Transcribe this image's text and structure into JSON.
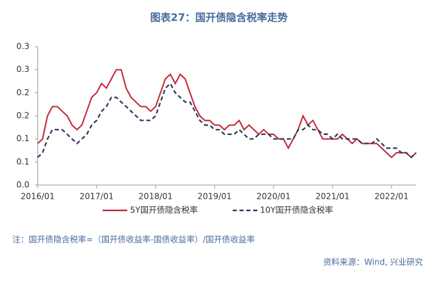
{
  "chart_data": {
    "type": "line",
    "title": "图表27：国开债隐含税率走势",
    "note": "注：国开债隐含税率=（国开债收益率-国债收益率）/国开债收益率",
    "source": "资料来源：Wind, 兴业研究",
    "x": [
      "2016/01",
      "2016/02",
      "2016/03",
      "2016/04",
      "2016/05",
      "2016/06",
      "2016/07",
      "2016/08",
      "2016/09",
      "2016/10",
      "2016/11",
      "2016/12",
      "2017/01",
      "2017/02",
      "2017/03",
      "2017/04",
      "2017/05",
      "2017/06",
      "2017/07",
      "2017/08",
      "2017/09",
      "2017/10",
      "2017/11",
      "2017/12",
      "2018/01",
      "2018/02",
      "2018/03",
      "2018/04",
      "2018/05",
      "2018/06",
      "2018/07",
      "2018/08",
      "2018/09",
      "2018/10",
      "2018/11",
      "2018/12",
      "2019/01",
      "2019/02",
      "2019/03",
      "2019/04",
      "2019/05",
      "2019/06",
      "2019/07",
      "2019/08",
      "2019/09",
      "2019/10",
      "2019/11",
      "2019/12",
      "2020/01",
      "2020/02",
      "2020/03",
      "2020/04",
      "2020/05",
      "2020/06",
      "2020/07",
      "2020/08",
      "2020/09",
      "2020/10",
      "2020/11",
      "2020/12",
      "2021/01",
      "2021/02",
      "2021/03",
      "2021/04",
      "2021/05",
      "2021/06",
      "2021/07",
      "2021/08",
      "2021/09",
      "2021/10",
      "2021/11",
      "2021/12",
      "2022/01",
      "2022/02",
      "2022/03",
      "2022/04",
      "2022/05",
      "2022/06"
    ],
    "xlim": [
      "2016/01",
      "2022/06"
    ],
    "xticks": [
      "2016/01",
      "2017/01",
      "2018/01",
      "2019/01",
      "2020/01",
      "2021/01",
      "2022/01"
    ],
    "ylim": [
      0,
      0.3
    ],
    "yticks": [
      {
        "value": 0,
        "label": "0.0"
      },
      {
        "value": 0.05,
        "label": "0.1"
      },
      0.1,
      {
        "value": 0.15,
        "label": "0.2"
      },
      0.2,
      {
        "value": 0.25,
        "label": "0.3"
      },
      0.3
    ],
    "grid": false,
    "legend": "bottom",
    "series": [
      {
        "name": "5Y国开债隐含税率",
        "color": "#c0293b",
        "dash": false,
        "values": [
          0.09,
          0.1,
          0.15,
          0.17,
          0.17,
          0.16,
          0.15,
          0.13,
          0.12,
          0.13,
          0.16,
          0.19,
          0.2,
          0.22,
          0.21,
          0.23,
          0.25,
          0.25,
          0.21,
          0.19,
          0.18,
          0.17,
          0.17,
          0.16,
          0.17,
          0.2,
          0.23,
          0.24,
          0.22,
          0.24,
          0.23,
          0.2,
          0.17,
          0.15,
          0.14,
          0.14,
          0.13,
          0.13,
          0.12,
          0.13,
          0.13,
          0.14,
          0.12,
          0.13,
          0.12,
          0.11,
          0.12,
          0.11,
          0.11,
          0.1,
          0.1,
          0.08,
          0.1,
          0.12,
          0.15,
          0.13,
          0.14,
          0.12,
          0.1,
          0.1,
          0.1,
          0.1,
          0.11,
          0.1,
          0.09,
          0.1,
          0.09,
          0.09,
          0.09,
          0.09,
          0.08,
          0.07,
          0.06,
          0.07,
          0.07,
          0.07,
          0.06,
          0.07
        ]
      },
      {
        "name": "10Y国开债隐含税率",
        "color": "#2b3a5c",
        "dash": true,
        "values": [
          0.06,
          0.07,
          0.1,
          0.12,
          0.12,
          0.12,
          0.11,
          0.1,
          0.09,
          0.1,
          0.11,
          0.13,
          0.14,
          0.16,
          0.17,
          0.19,
          0.19,
          0.18,
          0.17,
          0.16,
          0.15,
          0.14,
          0.14,
          0.14,
          0.15,
          0.18,
          0.21,
          0.22,
          0.2,
          0.19,
          0.18,
          0.18,
          0.16,
          0.14,
          0.13,
          0.13,
          0.12,
          0.12,
          0.11,
          0.11,
          0.11,
          0.12,
          0.11,
          0.1,
          0.1,
          0.11,
          0.11,
          0.11,
          0.1,
          0.1,
          0.1,
          0.1,
          0.1,
          0.12,
          0.12,
          0.13,
          0.12,
          0.12,
          0.11,
          0.11,
          0.1,
          0.11,
          0.1,
          0.1,
          0.1,
          0.1,
          0.09,
          0.09,
          0.09,
          0.1,
          0.09,
          0.08,
          0.08,
          0.08,
          0.07,
          0.07,
          0.06,
          0.07
        ]
      }
    ]
  }
}
